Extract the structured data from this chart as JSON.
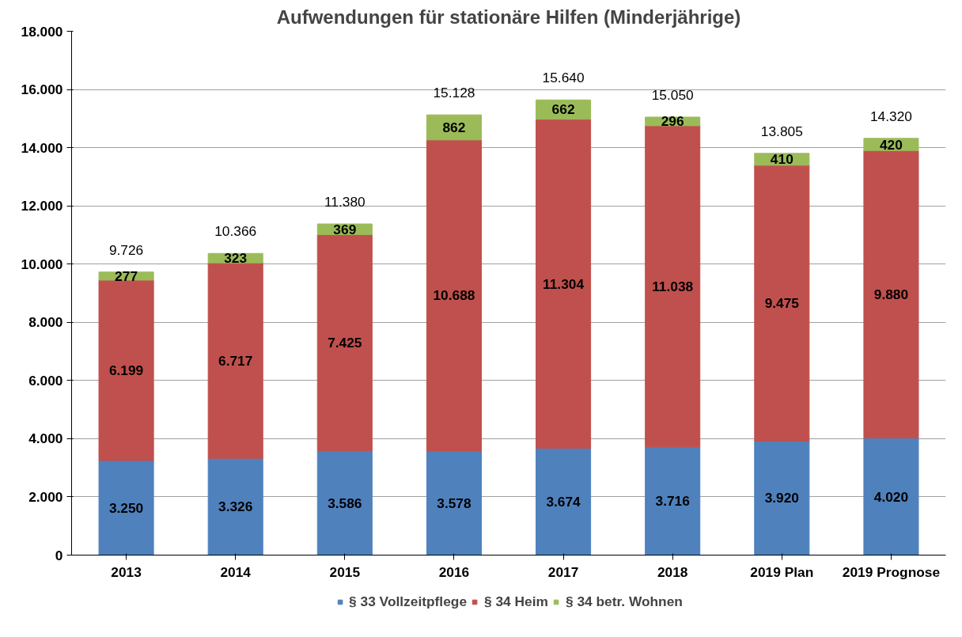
{
  "chart_data": {
    "type": "bar",
    "stacked": true,
    "title": "Aufwendungen für stationäre Hilfen (Minderjährige)",
    "categories": [
      "2013",
      "2014",
      "2015",
      "2016",
      "2017",
      "2018",
      "2019 Plan",
      "2019 Prognose"
    ],
    "series": [
      {
        "name": "§ 33 Vollzeitpflege",
        "color": "#4f81bd",
        "values": [
          3250,
          3326,
          3586,
          3578,
          3674,
          3716,
          3920,
          4020
        ],
        "value_labels": [
          "3.250",
          "3.326",
          "3.586",
          "3.578",
          "3.674",
          "3.716",
          "3.920",
          "4.020"
        ]
      },
      {
        "name": "§ 34 Heim",
        "color": "#c0504d",
        "values": [
          6199,
          6717,
          7425,
          10688,
          11304,
          11038,
          9475,
          9880
        ],
        "value_labels": [
          "6.199",
          "6.717",
          "7.425",
          "10.688",
          "11.304",
          "11.038",
          "9.475",
          "9.880"
        ]
      },
      {
        "name": "§ 34 betr. Wohnen",
        "color": "#9bbb59",
        "values": [
          277,
          323,
          369,
          862,
          662,
          296,
          410,
          420
        ],
        "value_labels": [
          "277",
          "323",
          "369",
          "862",
          "662",
          "296",
          "410",
          "420"
        ]
      }
    ],
    "totals": [
      "9.726",
      "10.366",
      "11.380",
      "15.128",
      "15.640",
      "15.050",
      "13.805",
      "14.320"
    ],
    "ylim": [
      0,
      18000
    ],
    "yticks": [
      {
        "value": 0,
        "label": "0"
      },
      {
        "value": 2000,
        "label": "2.000"
      },
      {
        "value": 4000,
        "label": "4.000"
      },
      {
        "value": 6000,
        "label": "6.000"
      },
      {
        "value": 8000,
        "label": "8.000"
      },
      {
        "value": 10000,
        "label": "10.000"
      },
      {
        "value": 12000,
        "label": "12.000"
      },
      {
        "value": 14000,
        "label": "14.000"
      },
      {
        "value": 16000,
        "label": "16.000"
      },
      {
        "value": 18000,
        "label": "18.000"
      }
    ],
    "grid": "y",
    "legend": "bottom"
  }
}
